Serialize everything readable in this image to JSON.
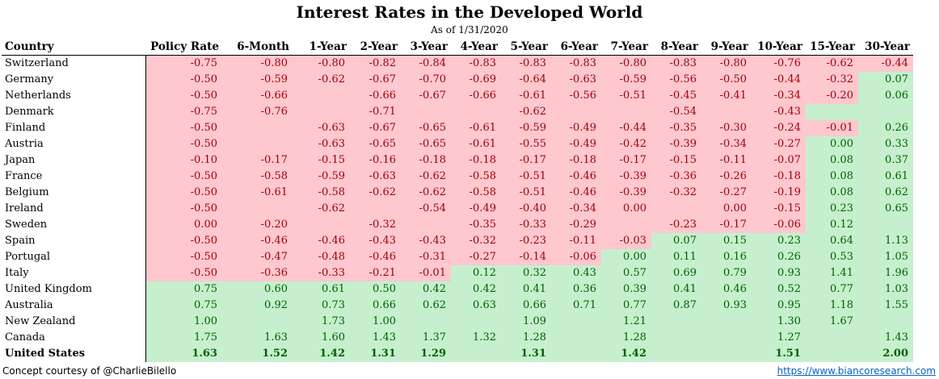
{
  "chart_data": {
    "type": "table",
    "title": "Interest Rates in the Developed World",
    "subtitle": "As of 1/31/2020",
    "columns": [
      "Country",
      "Policy Rate",
      "6-Month",
      "1-Year",
      "2-Year",
      "3-Year",
      "4-Year",
      "5-Year",
      "6-Year",
      "7-Year",
      "8-Year",
      "9-Year",
      "10-Year",
      "15-Year",
      "30-Year"
    ],
    "rows": [
      {
        "country": "Switzerland",
        "values": [
          "-0.75",
          "-0.80",
          "-0.80",
          "-0.82",
          "-0.84",
          "-0.83",
          "-0.83",
          "-0.83",
          "-0.80",
          "-0.83",
          "-0.80",
          "-0.76",
          "-0.62",
          "-0.44"
        ]
      },
      {
        "country": "Germany",
        "values": [
          "-0.50",
          "-0.59",
          "-0.62",
          "-0.67",
          "-0.70",
          "-0.69",
          "-0.64",
          "-0.63",
          "-0.59",
          "-0.56",
          "-0.50",
          "-0.44",
          "-0.32",
          "0.07"
        ]
      },
      {
        "country": "Netherlands",
        "values": [
          "-0.50",
          "-0.66",
          "",
          "-0.66",
          "-0.67",
          "-0.66",
          "-0.61",
          "-0.56",
          "-0.51",
          "-0.45",
          "-0.41",
          "-0.34",
          "-0.20",
          "0.06"
        ]
      },
      {
        "country": "Denmark",
        "values": [
          "-0.75",
          "-0.76",
          "",
          "-0.71",
          "",
          "",
          "-0.62",
          "",
          "",
          "-0.54",
          "",
          "-0.43",
          "",
          ""
        ]
      },
      {
        "country": "Finland",
        "values": [
          "-0.50",
          "",
          "-0.63",
          "-0.67",
          "-0.65",
          "-0.61",
          "-0.59",
          "-0.49",
          "-0.44",
          "-0.35",
          "-0.30",
          "-0.24",
          "-0.01",
          "0.26"
        ]
      },
      {
        "country": "Austria",
        "values": [
          "-0.50",
          "",
          "-0.63",
          "-0.65",
          "-0.65",
          "-0.61",
          "-0.55",
          "-0.49",
          "-0.42",
          "-0.39",
          "-0.34",
          "-0.27",
          "0.00",
          "0.33"
        ]
      },
      {
        "country": "Japan",
        "values": [
          "-0.10",
          "-0.17",
          "-0.15",
          "-0.16",
          "-0.18",
          "-0.18",
          "-0.17",
          "-0.18",
          "-0.17",
          "-0.15",
          "-0.11",
          "-0.07",
          "0.08",
          "0.37"
        ]
      },
      {
        "country": "France",
        "values": [
          "-0.50",
          "-0.58",
          "-0.59",
          "-0.63",
          "-0.62",
          "-0.58",
          "-0.51",
          "-0.46",
          "-0.39",
          "-0.36",
          "-0.26",
          "-0.18",
          "0.08",
          "0.61"
        ]
      },
      {
        "country": "Belgium",
        "values": [
          "-0.50",
          "-0.61",
          "-0.58",
          "-0.62",
          "-0.62",
          "-0.58",
          "-0.51",
          "-0.46",
          "-0.39",
          "-0.32",
          "-0.27",
          "-0.19",
          "0.08",
          "0.62"
        ]
      },
      {
        "country": "Ireland",
        "values": [
          "-0.50",
          "",
          "-0.62",
          "",
          "-0.54",
          "-0.49",
          "-0.40",
          "-0.34",
          "0.00",
          "",
          "0.00",
          "-0.15",
          "0.23",
          "0.65"
        ]
      },
      {
        "country": "Sweden",
        "values": [
          "0.00",
          "-0.20",
          "",
          "-0.32",
          "",
          "-0.35",
          "-0.33",
          "-0.29",
          "",
          "-0.23",
          "-0.17",
          "-0.06",
          "0.12",
          ""
        ]
      },
      {
        "country": "Spain",
        "values": [
          "-0.50",
          "-0.46",
          "-0.46",
          "-0.43",
          "-0.43",
          "-0.32",
          "-0.23",
          "-0.11",
          "-0.03",
          "0.07",
          "0.15",
          "0.23",
          "0.64",
          "1.13"
        ]
      },
      {
        "country": "Portugal",
        "values": [
          "-0.50",
          "-0.47",
          "-0.48",
          "-0.46",
          "-0.31",
          "-0.27",
          "-0.14",
          "-0.06",
          "0.00",
          "0.11",
          "0.16",
          "0.26",
          "0.53",
          "1.05"
        ]
      },
      {
        "country": "Italy",
        "values": [
          "-0.50",
          "-0.36",
          "-0.33",
          "-0.21",
          "-0.01",
          "0.12",
          "0.32",
          "0.43",
          "0.57",
          "0.69",
          "0.79",
          "0.93",
          "1.41",
          "1.96"
        ]
      },
      {
        "country": "United Kingdom",
        "values": [
          "0.75",
          "0.60",
          "0.61",
          "0.50",
          "0.42",
          "0.42",
          "0.41",
          "0.36",
          "0.39",
          "0.41",
          "0.46",
          "0.52",
          "0.77",
          "1.03"
        ]
      },
      {
        "country": "Australia",
        "values": [
          "0.75",
          "0.92",
          "0.73",
          "0.66",
          "0.62",
          "0.63",
          "0.66",
          "0.71",
          "0.77",
          "0.87",
          "0.93",
          "0.95",
          "1.18",
          "1.55"
        ]
      },
      {
        "country": "New Zealand",
        "values": [
          "1.00",
          "",
          "1.73",
          "1.00",
          "",
          "",
          "1.09",
          "",
          "1.21",
          "",
          "",
          "1.30",
          "1.67",
          ""
        ]
      },
      {
        "country": "Canada",
        "values": [
          "1.75",
          "1.63",
          "1.60",
          "1.43",
          "1.37",
          "1.32",
          "1.28",
          "",
          "1.28",
          "",
          "",
          "1.27",
          "",
          "1.43"
        ]
      },
      {
        "country": "United States",
        "values": [
          "1.63",
          "1.52",
          "1.42",
          "1.31",
          "1.29",
          "",
          "1.31",
          "",
          "1.42",
          "",
          "",
          "1.51",
          "",
          "2.00"
        ]
      }
    ],
    "cell_colors": {
      "negative_bg": "#ffc7ce",
      "negative_text": "#9c0006",
      "positive_bg": "#c6efce",
      "positive_text": "#006100"
    },
    "shading_rule": "red where rate <= 0 region, green where rate > 0 region"
  },
  "footer": {
    "credit": "Concept courtesy of @CharlieBilello",
    "link": "https://www.biancoresearch.com"
  }
}
